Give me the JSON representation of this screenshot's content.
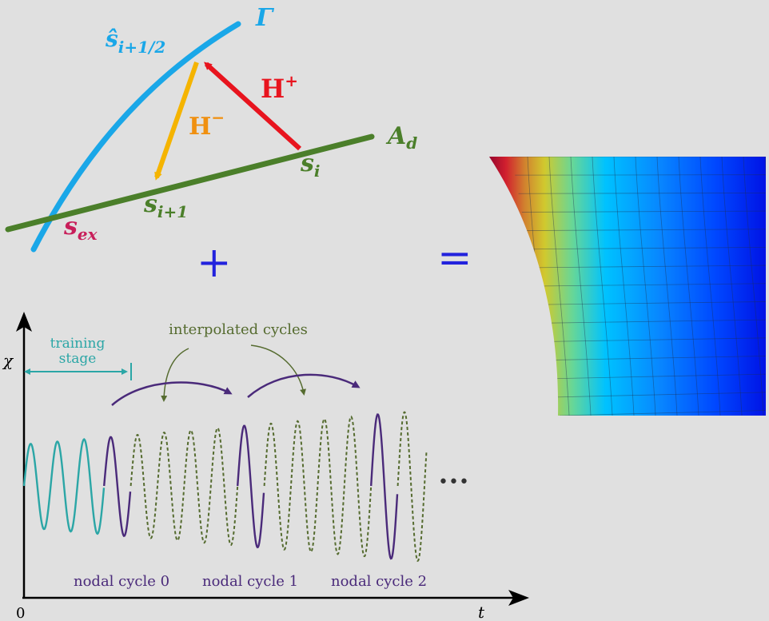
{
  "top_diagram": {
    "curve_label": "Γ",
    "line_label_base": "A",
    "line_label_sub": "d",
    "point_hat_label_base": "ŝ",
    "point_hat_label_sub": "i+1/2",
    "h_plus_base": "H",
    "h_plus_sup": "+",
    "h_minus_base": "H",
    "h_minus_sup": "−",
    "s_i_base": "s",
    "s_i_sub": "i",
    "s_i1_base": "s",
    "s_i1_sub": "i+1",
    "s_ex_base": "s",
    "s_ex_sub": "ex"
  },
  "operators": {
    "plus": "+",
    "equals": "="
  },
  "bottom_plot": {
    "y_label": "χ",
    "x_label": "t",
    "origin_label": "0",
    "training_label_line1": "training",
    "training_label_line2": "stage",
    "interpolated_label": "interpolated cycles",
    "nodal_cycles": [
      "nodal cycle 0",
      "nodal cycle 1",
      "nodal cycle 2"
    ],
    "ellipsis": "•••",
    "colors": {
      "training": "#2ba6a6",
      "nodal": "#4a2a7a",
      "interpolated": "#556b2f"
    }
  },
  "colors": {
    "gamma": "#1aa7e8",
    "ad": "#4b7f2a",
    "h_plus": "#e8141e",
    "h_minus": "#f5b400",
    "s_ex": "#c81e5a",
    "operator": "#2222dd"
  }
}
